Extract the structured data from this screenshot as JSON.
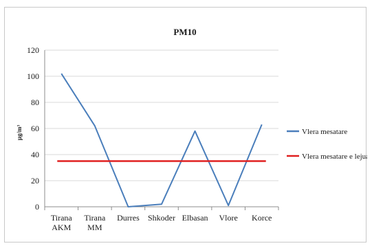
{
  "chart_data": {
    "type": "line",
    "title": "PM10",
    "xlabel": "",
    "ylabel": "µg/m³",
    "categories": [
      "Tirana AKM",
      "Tirana MM",
      "Durres",
      "Shkoder",
      "Elbasan",
      "Vlore",
      "Korce"
    ],
    "category_lines": [
      [
        "Tirana",
        "AKM"
      ],
      [
        "Tirana",
        "MM"
      ],
      [
        "Durres"
      ],
      [
        "Shkoder"
      ],
      [
        "Elbasan"
      ],
      [
        "Vlore"
      ],
      [
        "Korce"
      ]
    ],
    "ylim": [
      0,
      120
    ],
    "yticks": [
      0,
      20,
      40,
      60,
      80,
      100,
      120
    ],
    "ytick_labels": [
      "0",
      "20",
      "40",
      "60",
      "80",
      "100",
      "120"
    ],
    "grid": true,
    "legend_position": "right",
    "series": [
      {
        "name": "Vlera mesatare",
        "color": "#4a7ebb",
        "values": [
          102,
          62,
          0,
          2,
          58,
          1,
          63
        ]
      },
      {
        "name": "Vlera mesatare e lejuar",
        "color": "#e02020",
        "values": [
          35,
          35,
          35,
          35,
          35,
          35,
          35
        ]
      }
    ]
  }
}
